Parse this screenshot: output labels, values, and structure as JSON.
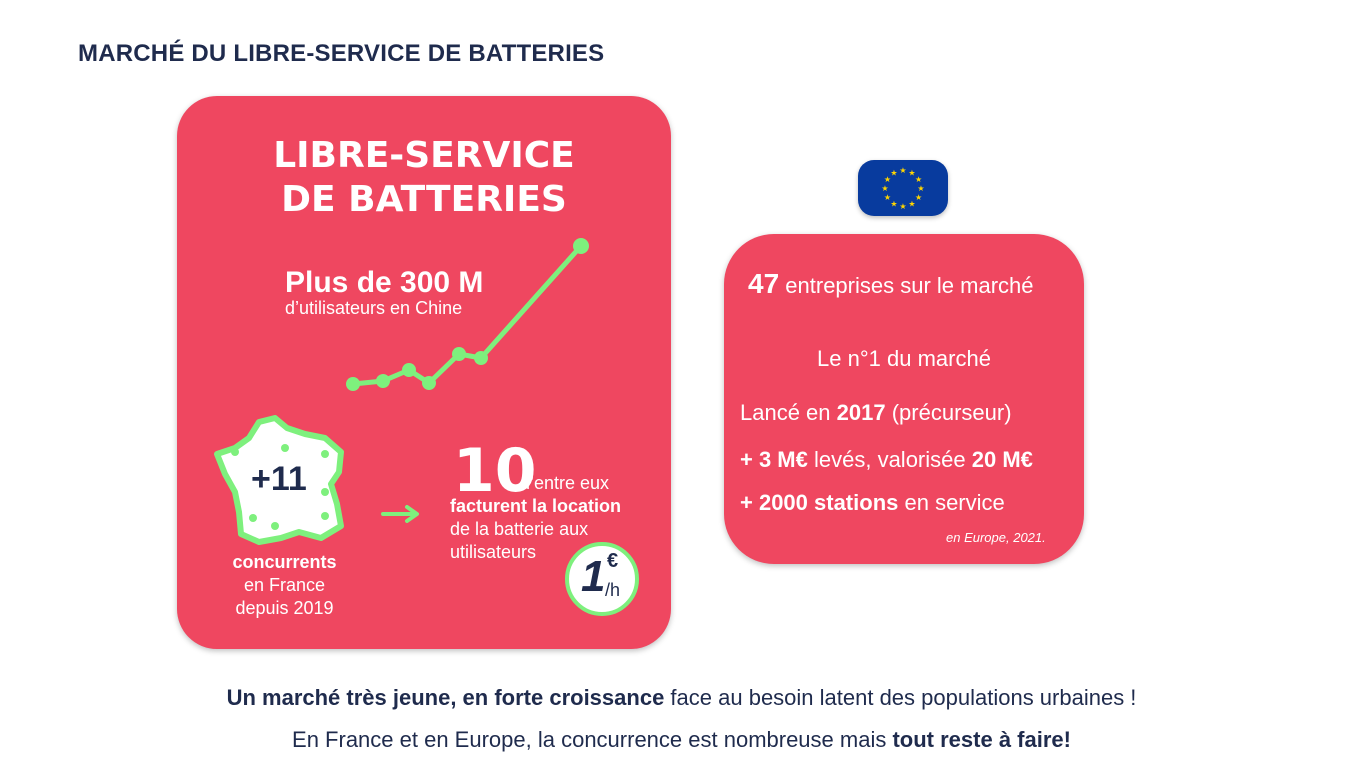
{
  "header": {
    "title": "MARCHÉ DU LIBRE-SERVICE DE BATTERIES"
  },
  "left_card": {
    "title_line1": "LIBRE-SERVICE",
    "title_line2": "DE BATTERIES",
    "stat_main": "Plus de 300 M",
    "stat_sub": "d’utilisateurs en Chine",
    "france_number": "+11",
    "competitors_label": "concurrents",
    "competitors_line2": "en France",
    "competitors_line3": "depuis 2019",
    "ten_number": "10",
    "ten_line1": "d’entre eux",
    "ten_line2": "facturent la location",
    "ten_line3": "de la batterie aux",
    "ten_line4": "utilisateurs",
    "price_value": "1",
    "price_currency": "€",
    "price_unit": "/h"
  },
  "right_card": {
    "l1_bold": "47",
    "l1_rest": "entreprises sur le marché",
    "l2": "Le n°1 du marché",
    "l3_a": "Lancé en ",
    "l3_bold": "2017",
    "l3_rest": " (précurseur)",
    "l4_bold1": "+ 3 M€",
    "l4_mid": " levés, valorisée ",
    "l4_bold2": "20 M€",
    "l5_bold": "+ 2000 stations",
    "l5_rest": " en service",
    "source": "en Europe, 2021."
  },
  "icons": {
    "eu_flag": "eu-flag-icon",
    "france_map": "france-map-icon",
    "trend": "trend-line-icon",
    "arrow": "arrow-right-icon"
  },
  "colors": {
    "accent": "#ef4760",
    "green": "#7ef07d",
    "navy": "#1f2b4d",
    "eu_blue": "#083b9e",
    "eu_gold": "#ffd500"
  },
  "footer": {
    "line1_bold": "Un marché très jeune, en forte croissance",
    "line1_rest": " face au besoin latent des populations urbaines !",
    "line2_a": "En France et en Europe, la concurrence est nombreuse mais ",
    "line2_bold": "tout reste à faire!"
  }
}
